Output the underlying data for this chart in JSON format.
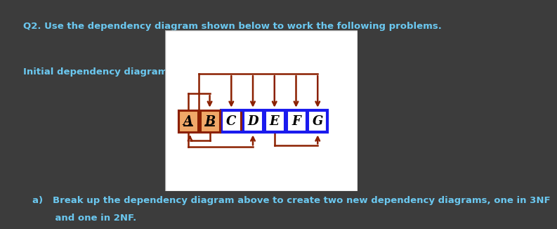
{
  "bg_color": "#3c3c3c",
  "diagram_bg": "#ffffff",
  "title_text": "Q2. Use the dependency diagram shown below to work the following problems.",
  "subtitle_text": "Initial dependency diagram:",
  "question_a": "a)   Break up the dependency diagram above to create two new dependency diagrams, one in 3NF",
  "question_b": "       and one in 2NF.",
  "text_color": "#6bc8f0",
  "box_labels": [
    "A",
    "B",
    "C",
    "D",
    "E",
    "F",
    "G"
  ],
  "key_fill": "#f0a868",
  "normal_fill": "#ffffff",
  "brown": "#8b2000",
  "blue": "#1a1aee",
  "font_size_text": 9.5,
  "font_size_box": 13
}
